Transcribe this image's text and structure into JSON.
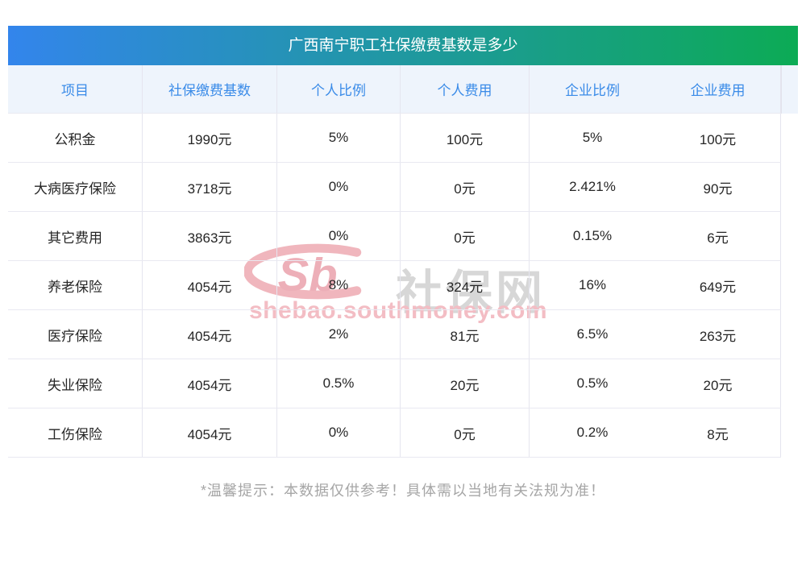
{
  "title": "广西南宁职工社保缴费基数是多少",
  "chart_data": {
    "type": "table",
    "title": "广西南宁职工社保缴费基数是多少",
    "columns": [
      "项目",
      "社保缴费基数",
      "个人比例",
      "个人费用",
      "企业比例",
      "企业费用"
    ],
    "rows": [
      [
        "公积金",
        "1990元",
        "5%",
        "100元",
        "5%",
        "100元"
      ],
      [
        "大病医疗保险",
        "3718元",
        "0%",
        "0元",
        "2.421%",
        "90元"
      ],
      [
        "其它费用",
        "3863元",
        "0%",
        "0元",
        "0.15%",
        "6元"
      ],
      [
        "养老保险",
        "4054元",
        "8%",
        "324元",
        "16%",
        "649元"
      ],
      [
        "医疗保险",
        "4054元",
        "2%",
        "81元",
        "6.5%",
        "263元"
      ],
      [
        "失业保险",
        "4054元",
        "0.5%",
        "20元",
        "0.5%",
        "20元"
      ],
      [
        "工伤保险",
        "4054元",
        "0%",
        "0元",
        "0.2%",
        "8元"
      ]
    ]
  },
  "watermark": {
    "logo_text": "Sb",
    "site_name": "社保网",
    "site_url": "shebao.southmoney.com"
  },
  "footer": {
    "note": "*温馨提示：本数据仅供参考！具体需以当地有关法规为准！"
  },
  "colors": {
    "title_gradient_start": "#3385ec",
    "title_gradient_end": "#0cab55",
    "header_bg": "#eef4fc",
    "header_text": "#3a8be8",
    "body_text": "#262626",
    "grid_line": "#e5e5ef",
    "watermark_pink": "#f0b6bd",
    "watermark_gray": "#d7d7d7",
    "footer_text": "#a6a6a6"
  }
}
